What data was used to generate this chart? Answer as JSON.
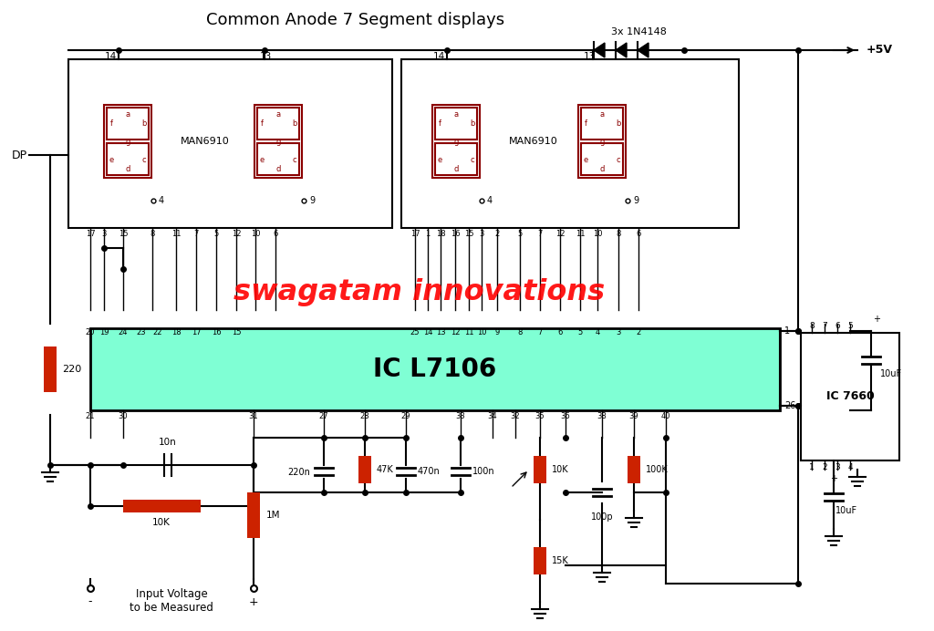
{
  "title": "Common Anode 7 Segment displays",
  "watermark": "swagatam innovations",
  "bg_color": "#ffffff",
  "seg_col": "#8b0000",
  "ic_cyan": "#7fffd4",
  "res_col": "#cc2200",
  "wire_col": "#000000",
  "diodes_label": "3x 1N4148",
  "supply_label": "+5V"
}
